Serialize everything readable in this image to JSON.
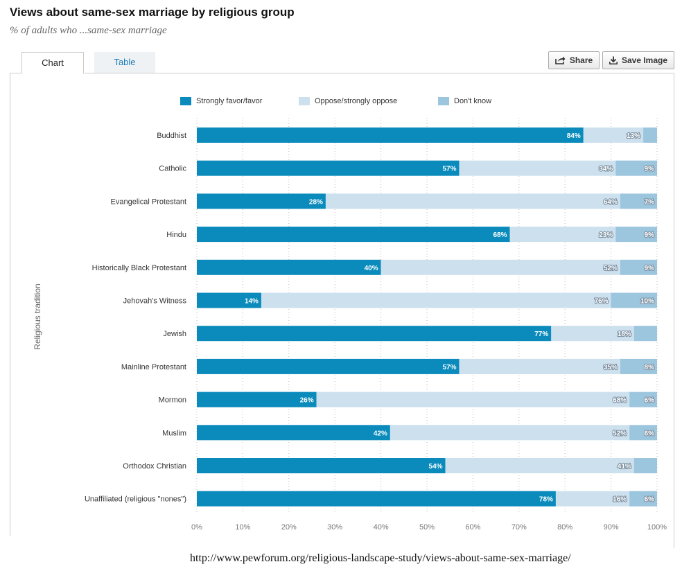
{
  "header": {
    "title": "Views about same-sex marriage by religious group",
    "subtitle": "% of adults who ...same-sex marriage"
  },
  "tabs": [
    {
      "label": "Chart",
      "active": true
    },
    {
      "label": "Table",
      "active": false
    }
  ],
  "toolbar": {
    "share_label": "Share",
    "save_label": "Save Image",
    "share_icon": "share-icon",
    "save_icon": "download-icon"
  },
  "footer": {
    "url_text": "http://www.pewforum.org/religious-landscape-study/views-about-same-sex-marriage/"
  },
  "chart_data": {
    "type": "bar",
    "orientation": "horizontal",
    "stacked": true,
    "title": "Views about same-sex marriage by religious group",
    "subtitle": "% of adults who ...same-sex marriage",
    "ylabel": "Religious tradition",
    "xlim": [
      0,
      100
    ],
    "x_ticks": [
      "0%",
      "10%",
      "20%",
      "30%",
      "40%",
      "50%",
      "60%",
      "70%",
      "80%",
      "90%",
      "100%"
    ],
    "grid": "vertical dotted",
    "legend_position": "top",
    "categories": [
      "Buddhist",
      "Catholic",
      "Evangelical Protestant",
      "Hindu",
      "Historically Black Protestant",
      "Jehovah's Witness",
      "Jewish",
      "Mainline Protestant",
      "Mormon",
      "Muslim",
      "Orthodox Christian",
      "Unaffiliated (religious \"nones\")"
    ],
    "series": [
      {
        "name": "Strongly favor/favor",
        "color": "#0a8bbb",
        "values": [
          84,
          57,
          28,
          68,
          40,
          14,
          77,
          57,
          26,
          42,
          54,
          78
        ],
        "labels": [
          "84%",
          "57%",
          "28%",
          "68%",
          "40%",
          "14%",
          "77%",
          "57%",
          "26%",
          "42%",
          "54%",
          "78%"
        ]
      },
      {
        "name": "Oppose/strongly oppose",
        "color": "#cde0ee",
        "values": [
          13,
          34,
          64,
          23,
          52,
          76,
          18,
          35,
          68,
          52,
          41,
          16
        ],
        "labels": [
          "13%",
          "34%",
          "64%",
          "23%",
          "52%",
          "76%",
          "18%",
          "35%",
          "68%",
          "52%",
          "41%",
          "16%"
        ]
      },
      {
        "name": "Don't know",
        "color": "#9cc5de",
        "values": [
          3,
          9,
          7,
          9,
          9,
          10,
          5,
          8,
          6,
          6,
          5,
          6
        ],
        "labels": [
          "",
          "9%",
          "7%",
          "9%",
          "9%",
          "10%",
          "",
          "8%",
          "6%",
          "6%",
          "",
          "6%"
        ]
      }
    ]
  }
}
